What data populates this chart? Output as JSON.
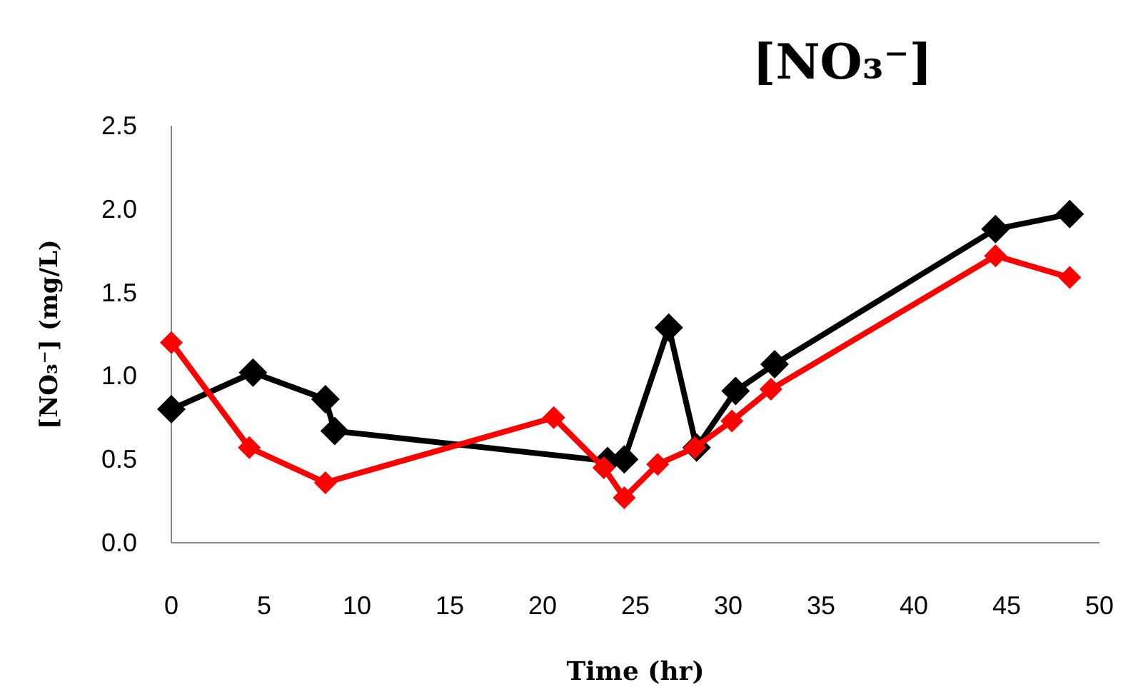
{
  "chart_data": {
    "type": "line",
    "title": "[NO₃⁻]",
    "xlabel": "Time (hr)",
    "ylabel": "[NO₃⁻] (mg/L)",
    "xlim": [
      0,
      50
    ],
    "xticks": [
      0,
      5,
      10,
      15,
      20,
      25,
      30,
      35,
      40,
      45,
      50
    ],
    "ylim": [
      0,
      2.5
    ],
    "yticks": [
      {
        "value": 0,
        "label": "0.0"
      },
      {
        "value": 0.5,
        "label": "0.5"
      },
      {
        "value": 1,
        "label": "1.0"
      },
      {
        "value": 1.5,
        "label": "1.5"
      },
      {
        "value": 2,
        "label": "2.0"
      },
      {
        "value": 2.5,
        "label": "2.5"
      }
    ],
    "grid": false,
    "marker": "diamond",
    "line_style": "solid",
    "series": [
      {
        "color": "#000000",
        "x": [
          0,
          4.4,
          8.3,
          8.8,
          23.5,
          24.4,
          26.8,
          28.3,
          30.4,
          32.5,
          44.4,
          48.4
        ],
        "values": [
          0.8,
          1.02,
          0.86,
          0.67,
          0.49,
          0.5,
          1.29,
          0.57,
          0.91,
          1.07,
          1.88,
          1.97
        ]
      },
      {
        "color": "#ff0000",
        "x": [
          0,
          4.2,
          8.3,
          20.6,
          23.3,
          24.4,
          26.2,
          28.2,
          30.2,
          32.3,
          44.4,
          48.4
        ],
        "values": [
          1.2,
          0.57,
          0.36,
          0.75,
          0.45,
          0.27,
          0.47,
          0.57,
          0.73,
          0.92,
          1.72,
          1.59
        ]
      }
    ]
  }
}
